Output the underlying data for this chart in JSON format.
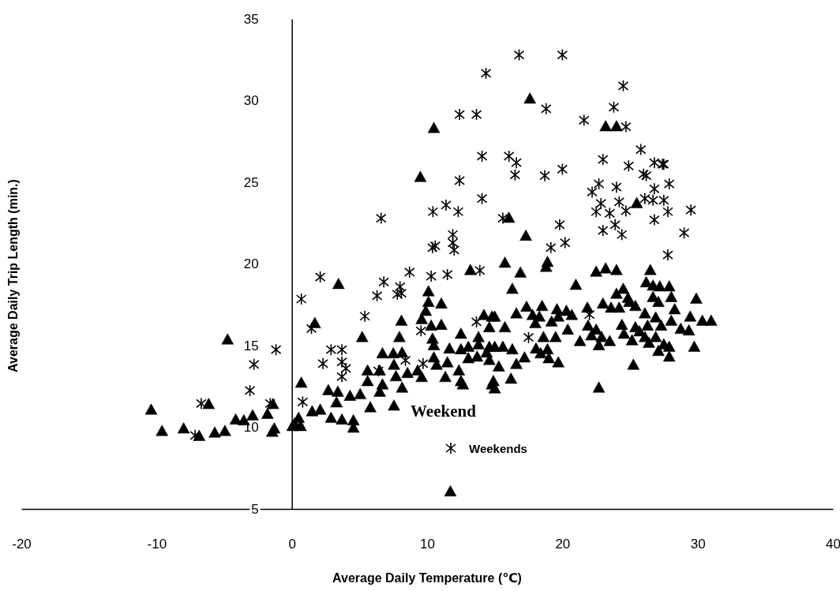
{
  "chart_data": {
    "type": "scatter",
    "xlabel": "Average Daily Temperature (℃)",
    "ylabel": "Average Daily Trip Length (min.)",
    "legend_title": "Weekend",
    "legend": "bottom",
    "grid": false,
    "xlim": [
      -20,
      40
    ],
    "xticks": [
      -20,
      -10,
      0,
      10,
      20,
      30,
      40
    ],
    "ylim": [
      5,
      35
    ],
    "yticks": [
      5,
      10,
      15,
      20,
      25,
      30,
      35
    ],
    "series": [
      {
        "name": "Weekends",
        "color": "#000000",
        "marker": "cross",
        "x": [
          -7.15,
          -6.7,
          -3.1,
          -2.8,
          -1.6,
          -1.17,
          0.7,
          0.8,
          1.45,
          2.1,
          2.3,
          2.9,
          3.7,
          3.7,
          3.7,
          4.0,
          5.4,
          6.3,
          6.4,
          6.6,
          6.8,
          7.8,
          8.0,
          8.1,
          8.4,
          8.7,
          9.55,
          9.7,
          10.3,
          10.4,
          10.43,
          10.6,
          11.4,
          11.5,
          11.9,
          11.9,
          12.0,
          12.3,
          12.4,
          12.4,
          13.65,
          13.65,
          13.9,
          14.06,
          14.06,
          14.35,
          15.6,
          16.05,
          16.5,
          16.6,
          16.8,
          17.5,
          18.7,
          18.8,
          19.15,
          19.8,
          20.0,
          20.0,
          20.2,
          21.6,
          22.0,
          22.2,
          22.5,
          22.7,
          22.85,
          23.0,
          23.0,
          23.5,
          23.8,
          23.9,
          24.0,
          24.2,
          24.4,
          24.5,
          24.7,
          24.7,
          24.9,
          25.8,
          26.0,
          26.1,
          26.2,
          26.7,
          26.8,
          26.8,
          26.8,
          27.4,
          27.5,
          27.5,
          27.8,
          27.8,
          27.9,
          29.0,
          29.5
        ],
        "values": [
          9.5,
          11.45,
          12.25,
          13.85,
          11.45,
          14.75,
          17.85,
          11.55,
          16.05,
          19.2,
          13.9,
          14.75,
          14.75,
          14.0,
          13.1,
          13.6,
          16.8,
          18.05,
          13.45,
          22.8,
          18.9,
          18.15,
          18.6,
          18.2,
          14.1,
          19.5,
          15.9,
          13.9,
          19.25,
          21.0,
          23.2,
          21.1,
          23.6,
          19.35,
          21.8,
          21.3,
          20.85,
          23.2,
          29.15,
          25.1,
          29.15,
          16.45,
          19.6,
          26.6,
          24.0,
          31.67,
          22.8,
          26.6,
          25.45,
          26.2,
          32.8,
          15.5,
          25.4,
          29.5,
          21.0,
          22.4,
          32.8,
          25.8,
          21.3,
          28.8,
          16.9,
          24.4,
          23.2,
          24.9,
          23.7,
          26.4,
          22.05,
          23.1,
          29.6,
          22.4,
          24.7,
          23.8,
          21.8,
          30.9,
          28.4,
          23.25,
          26.0,
          27.0,
          25.5,
          24.0,
          25.4,
          23.9,
          26.2,
          24.6,
          22.7,
          26.1,
          26.1,
          23.9,
          23.2,
          20.55,
          24.9,
          21.9,
          23.3
        ]
      },
      {
        "color": "#000000",
        "marker": "triangle",
        "x": [
          -10.4,
          -9.6,
          -8.0,
          -6.85,
          -6.15,
          -5.7,
          -4.95,
          -4.75,
          -4.15,
          -3.55,
          -2.9,
          -1.8,
          -1.4,
          -1.3,
          -1.45,
          0.05,
          0.2,
          0.65,
          0.5,
          0.7,
          1.5,
          1.7,
          2.1,
          2.7,
          2.9,
          3.3,
          3.4,
          3.45,
          3.7,
          4.3,
          4.55,
          4.55,
          5.05,
          5.2,
          5.6,
          5.6,
          5.8,
          6.5,
          6.5,
          6.7,
          6.7,
          7.5,
          7.55,
          7.55,
          7.7,
          7.95,
          8.1,
          8.15,
          8.15,
          8.55,
          9.3,
          9.5,
          9.6,
          9.6,
          9.9,
          10.1,
          10.1,
          10.3,
          10.4,
          10.5,
          10.5,
          10.5,
          10.7,
          11.05,
          11.05,
          11.35,
          11.5,
          11.65,
          12.35,
          12.5,
          12.5,
          12.5,
          12.65,
          13.05,
          13.05,
          13.2,
          13.7,
          13.8,
          13.8,
          14.2,
          14.4,
          14.6,
          14.6,
          14.6,
          14.8,
          14.8,
          14.9,
          15.0,
          15.0,
          15.0,
          15.3,
          15.6,
          15.75,
          15.75,
          16.05,
          16.2,
          16.3,
          16.3,
          16.6,
          16.6,
          16.9,
          17.2,
          17.3,
          17.35,
          17.6,
          17.8,
          18.0,
          18.05,
          18.3,
          18.4,
          18.5,
          18.6,
          18.8,
          18.9,
          18.9,
          19.0,
          19.2,
          19.5,
          19.6,
          19.7,
          19.7,
          20.3,
          20.4,
          20.7,
          21.0,
          21.3,
          21.85,
          21.9,
          22.15,
          22.5,
          22.5,
          22.7,
          22.7,
          22.9,
          23.0,
          23.2,
          23.2,
          23.5,
          23.6,
          24.0,
          24.0,
          24.0,
          24.2,
          24.4,
          24.5,
          24.55,
          24.85,
          24.95,
          25.15,
          25.25,
          25.4,
          25.4,
          25.5,
          25.7,
          26.1,
          26.1,
          26.2,
          26.3,
          26.4,
          26.5,
          26.7,
          26.7,
          26.9,
          26.9,
          27.1,
          27.1,
          27.2,
          27.3,
          27.5,
          27.9,
          27.9,
          27.9,
          28.05,
          28.05,
          28.3,
          28.75,
          29.35,
          29.45,
          29.75,
          29.9,
          30.35,
          31.0,
          11.72
        ],
        "values": [
          11.05,
          9.75,
          9.9,
          9.45,
          11.4,
          9.65,
          9.75,
          15.35,
          10.45,
          10.4,
          10.7,
          10.8,
          11.4,
          9.9,
          9.7,
          10.05,
          10.2,
          10.05,
          10.55,
          12.7,
          10.95,
          16.35,
          11.05,
          12.25,
          10.55,
          11.5,
          12.15,
          18.75,
          10.45,
          11.9,
          10.4,
          9.95,
          12.0,
          15.5,
          13.45,
          12.8,
          11.2,
          13.45,
          12.15,
          14.5,
          12.6,
          14.5,
          13.8,
          11.3,
          13.1,
          15.5,
          16.5,
          14.55,
          12.4,
          13.3,
          13.45,
          25.3,
          16.6,
          13.05,
          17.1,
          18.3,
          17.65,
          16.2,
          15.4,
          28.3,
          15.0,
          14.25,
          13.8,
          17.55,
          16.25,
          13.05,
          13.95,
          14.8,
          13.45,
          15.7,
          14.75,
          12.8,
          12.6,
          14.9,
          14.2,
          19.6,
          14.3,
          15.5,
          15.05,
          16.85,
          14.55,
          16.1,
          14.9,
          14.1,
          16.75,
          12.6,
          12.8,
          16.75,
          14.9,
          12.35,
          13.7,
          14.9,
          20.05,
          16.1,
          22.8,
          12.95,
          18.45,
          14.75,
          16.95,
          13.85,
          19.45,
          14.25,
          21.7,
          17.35,
          30.1,
          16.85,
          16.35,
          14.8,
          16.75,
          14.5,
          17.4,
          15.5,
          19.8,
          20.1,
          14.75,
          14.2,
          16.45,
          15.5,
          17.2,
          16.75,
          13.95,
          17.1,
          15.95,
          16.85,
          18.7,
          15.25,
          17.3,
          16.2,
          15.6,
          19.5,
          15.95,
          15.0,
          12.4,
          15.5,
          17.55,
          28.4,
          19.7,
          15.25,
          17.3,
          28.4,
          19.6,
          18.15,
          17.3,
          16.25,
          18.45,
          15.7,
          17.9,
          17.65,
          15.3,
          13.8,
          17.4,
          16.1,
          23.7,
          15.85,
          16.95,
          15.5,
          18.85,
          16.2,
          15.15,
          19.6,
          18.65,
          17.95,
          16.7,
          15.5,
          17.65,
          14.65,
          18.6,
          16.2,
          15.05,
          18.6,
          14.9,
          14.3,
          17.95,
          16.5,
          17.2,
          16.0,
          15.9,
          16.75,
          14.9,
          17.85,
          16.5,
          16.5,
          6.05
        ]
      }
    ]
  }
}
